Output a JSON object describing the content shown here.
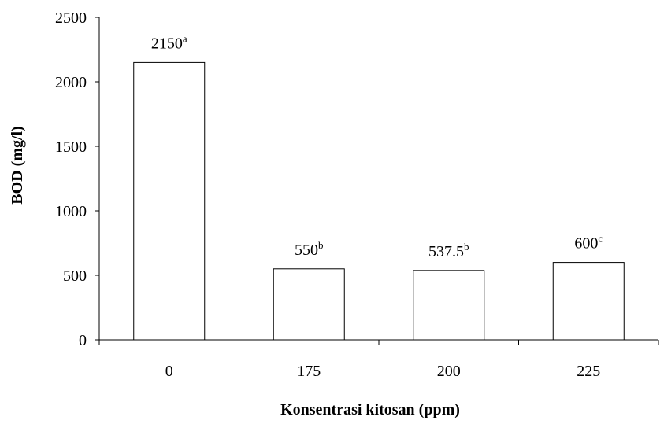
{
  "chart_data": {
    "type": "bar",
    "categories": [
      "0",
      "175",
      "200",
      "225"
    ],
    "values": [
      2150,
      550,
      537.5,
      600
    ],
    "data_labels": [
      {
        "value": "2150",
        "superscript": "a"
      },
      {
        "value": "550",
        "superscript": "b"
      },
      {
        "value": "537.5",
        "superscript": "b"
      },
      {
        "value": "600",
        "superscript": "c"
      }
    ],
    "xlabel": "Konsentrasi kitosan (ppm)",
    "ylabel": "BOD (mg/l)",
    "ylim": [
      0,
      2500
    ],
    "yticks": [
      "0",
      "500",
      "1000",
      "1500",
      "2000",
      "2500"
    ],
    "grid": false,
    "bar_fill": "#ffffff",
    "bar_stroke": "#000000"
  }
}
